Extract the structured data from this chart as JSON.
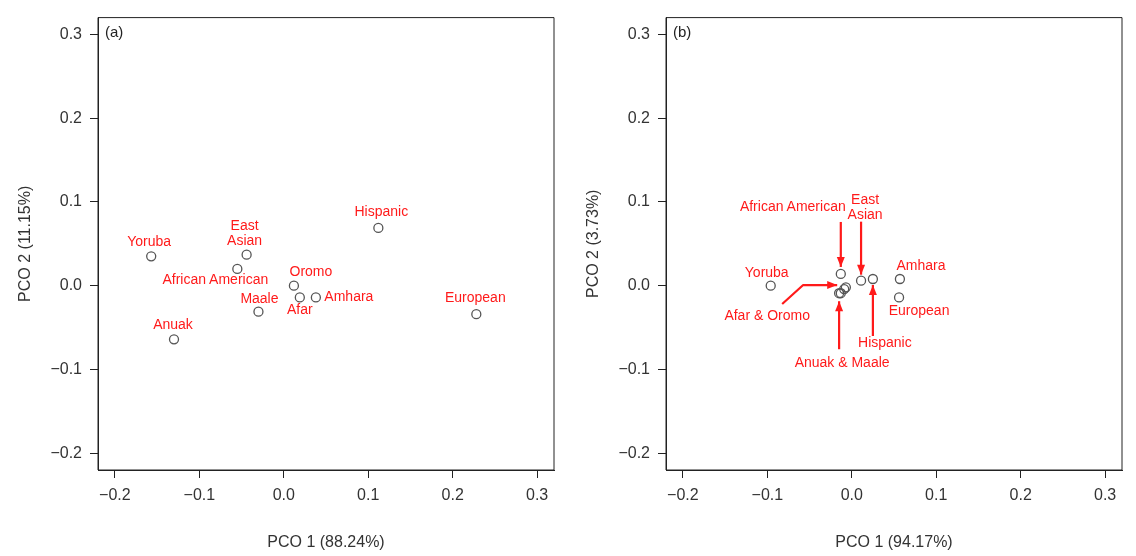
{
  "chart_data": [
    {
      "type": "scatter",
      "title": "(a)",
      "xlabel": "PCO 1 (88.24%)",
      "ylabel": "PCO 2 (11.15%)",
      "marker": "circle",
      "xlim": [
        -0.22,
        0.32
      ],
      "ylim": [
        -0.22,
        0.32
      ],
      "xticks": [
        {
          "value": -0.2,
          "label": "−0.2"
        },
        {
          "value": -0.1,
          "label": "−0.1"
        },
        {
          "value": 0,
          "label": "0.0"
        },
        {
          "value": 0.1,
          "label": "0.1"
        },
        {
          "value": 0.2,
          "label": "0.2"
        },
        {
          "value": 0.3,
          "label": "0.3"
        }
      ],
      "yticks": [
        {
          "value": -0.2,
          "label": "−0.2"
        },
        {
          "value": -0.1,
          "label": "−0.1"
        },
        {
          "value": 0,
          "label": "0.0"
        },
        {
          "value": 0.1,
          "label": "0.1"
        },
        {
          "value": 0.2,
          "label": "0.2"
        },
        {
          "value": 0.3,
          "label": "0.3"
        }
      ],
      "series": [
        {
          "color": "#555555",
          "x": [
            -0.157,
            -0.044,
            -0.055,
            0.112,
            0.012,
            0.019,
            0.038,
            -0.03,
            0.228,
            -0.13
          ],
          "values": [
            0.035,
            0.037,
            0.02,
            0.069,
            0.0,
            -0.014,
            -0.014,
            -0.031,
            -0.034,
            -0.064
          ]
        }
      ],
      "annotations": [
        {
          "text": "Yoruba",
          "x": -0.157,
          "y": 0.035
        },
        {
          "text": "East\nAsian",
          "x": -0.044,
          "y": 0.037
        },
        {
          "text": "African American",
          "x": -0.055,
          "y": 0.02
        },
        {
          "text": "Hispanic",
          "x": 0.112,
          "y": 0.069
        },
        {
          "text": "Oromo",
          "x": 0.012,
          "y": 0.0
        },
        {
          "text": "Afar",
          "x": 0.019,
          "y": -0.014
        },
        {
          "text": "Amhara",
          "x": 0.038,
          "y": -0.014
        },
        {
          "text": "Maale",
          "x": -0.03,
          "y": -0.031
        },
        {
          "text": "European",
          "x": 0.228,
          "y": -0.034
        },
        {
          "text": "Anuak",
          "x": -0.13,
          "y": -0.064
        }
      ]
    },
    {
      "type": "scatter",
      "title": "(b)",
      "xlabel": "PCO 1 (94.17%)",
      "ylabel": "PCO 2 (3.73%)",
      "marker": "circle",
      "xlim": [
        -0.22,
        0.32
      ],
      "ylim": [
        -0.22,
        0.32
      ],
      "xticks": [
        {
          "value": -0.2,
          "label": "−0.2"
        },
        {
          "value": -0.1,
          "label": "−0.1"
        },
        {
          "value": 0,
          "label": "0.0"
        },
        {
          "value": 0.1,
          "label": "0.1"
        },
        {
          "value": 0.2,
          "label": "0.2"
        },
        {
          "value": 0.3,
          "label": "0.3"
        }
      ],
      "yticks": [
        {
          "value": -0.2,
          "label": "−0.2"
        },
        {
          "value": -0.1,
          "label": "−0.1"
        },
        {
          "value": 0,
          "label": "0.0"
        },
        {
          "value": 0.1,
          "label": "0.1"
        },
        {
          "value": 0.2,
          "label": "0.2"
        },
        {
          "value": 0.3,
          "label": "0.3"
        }
      ],
      "series": [
        {
          "color": "#555555",
          "x": [
            -0.096,
            -0.013,
            0.011,
            0.025,
            0.057,
            0.056,
            -0.007,
            -0.009,
            -0.015,
            -0.013
          ],
          "values": [
            0.0,
            0.014,
            0.006,
            0.008,
            0.008,
            -0.014,
            -0.002,
            -0.004,
            -0.009,
            -0.009
          ]
        }
      ],
      "annotations": [
        {
          "text": "Yoruba",
          "x": -0.096,
          "y": 0.0
        },
        {
          "text": "African American",
          "x": -0.013,
          "y": 0.014
        },
        {
          "text": "East\nAsian",
          "x": 0.011,
          "y": 0.006
        },
        {
          "text": "Hispanic",
          "x": 0.025,
          "y": 0.008
        },
        {
          "text": "Amhara",
          "x": 0.057,
          "y": 0.008
        },
        {
          "text": "European",
          "x": 0.056,
          "y": -0.014
        },
        {
          "text": "Afar & Oromo",
          "x": -0.009,
          "y": -0.004
        },
        {
          "text": "Anuak & Maale",
          "x": -0.015,
          "y": -0.009
        }
      ]
    }
  ]
}
